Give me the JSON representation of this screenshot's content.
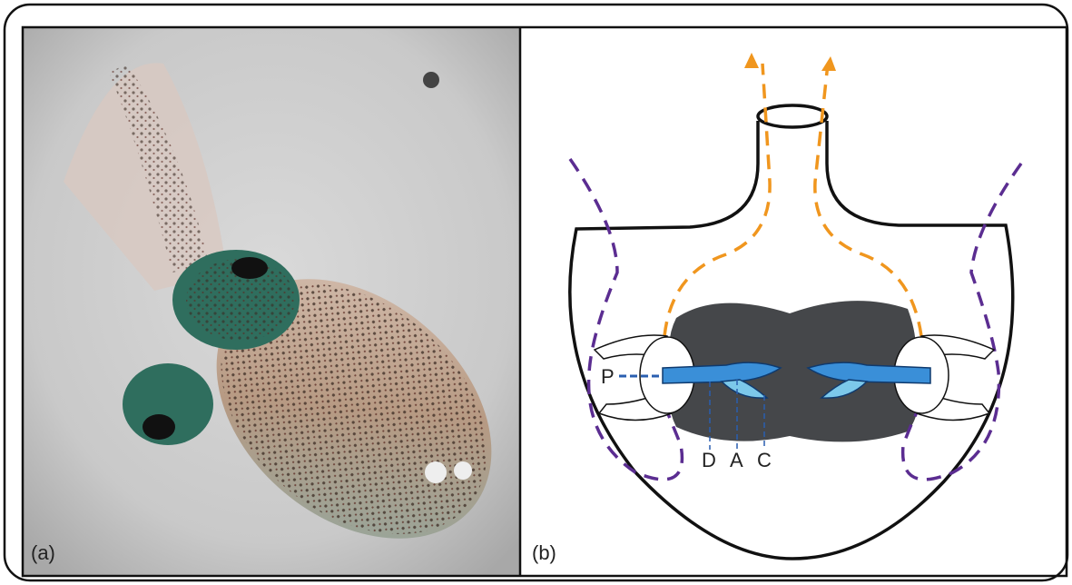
{
  "panels": [
    {
      "label": "(a)"
    },
    {
      "label": "(b)"
    }
  ],
  "diagram": {
    "labels": [
      "P",
      "D",
      "A",
      "C"
    ]
  }
}
